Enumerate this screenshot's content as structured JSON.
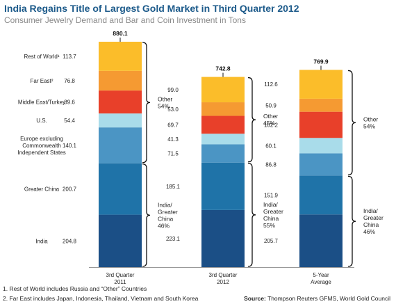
{
  "title": "India Regains Title of Largest Gold Market in Third Quarter 2012",
  "subtitle": "Consumer Jewelry Demand and Bar and Coin Investment in Tons",
  "chart_data": {
    "type": "bar",
    "stacked": true,
    "categories": [
      "3rd Quarter 2011",
      "3rd Quarter 2012",
      "5-Year Average"
    ],
    "category_label_lines": [
      [
        "3rd Quarter",
        "2011"
      ],
      [
        "3rd Quarter",
        "2012"
      ],
      [
        "5-Year",
        "Average"
      ]
    ],
    "totals": [
      "880.1",
      "742.8",
      "769.9"
    ],
    "series": [
      {
        "name": "India",
        "label_lines": [
          "India"
        ],
        "color": "#1b4f86",
        "values": [
          204.8,
          223.1,
          205.7
        ]
      },
      {
        "name": "Greater China",
        "label_lines": [
          "Greater China"
        ],
        "color": "#1f73a8",
        "values": [
          200.7,
          185.1,
          151.9
        ]
      },
      {
        "name": "Europe excluding Commonwealth Independent States",
        "label_lines": [
          "Europe excluding",
          "Commonwealth",
          "Independent States"
        ],
        "color": "#4b95c4",
        "values": [
          140.1,
          71.5,
          86.8
        ]
      },
      {
        "name": "U.S.",
        "label_lines": [
          "U.S."
        ],
        "color": "#a9dcea",
        "values": [
          54.4,
          41.3,
          60.1
        ]
      },
      {
        "name": "Middle East/Turkey",
        "label_lines": [
          "Middle East/Turkey"
        ],
        "color": "#e8402a",
        "values": [
          89.6,
          69.7,
          102.2
        ]
      },
      {
        "name": "Far East²",
        "label_lines": [
          "Far East²"
        ],
        "color": "#f59a32",
        "values": [
          76.8,
          53.0,
          50.9
        ]
      },
      {
        "name": "Rest of World¹",
        "label_lines": [
          "Rest of World¹"
        ],
        "color": "#fbbd2a",
        "values": [
          113.7,
          99.0,
          112.6
        ]
      }
    ],
    "value_labels": [
      [
        "204.8",
        "200.7",
        "140.1",
        "54.4",
        "89.6",
        "76.8",
        "113.7"
      ],
      [
        "223.1",
        "185.1",
        "71.5",
        "41.3",
        "69.7",
        "53.0",
        "99.0"
      ],
      [
        "205.7",
        "151.9",
        "86.8",
        "60.1",
        "102.2",
        "50.9",
        "112.6"
      ]
    ],
    "brackets": [
      {
        "lines": [
          "Other",
          "54%"
        ]
      },
      {
        "lines": [
          "India/",
          "Greater",
          "China",
          "46%"
        ]
      },
      {
        "lines": [
          "Other",
          "45%"
        ]
      },
      {
        "lines": [
          "India/",
          "Greater",
          "China",
          "55%"
        ]
      },
      {
        "lines": [
          "Other",
          "54%"
        ]
      },
      {
        "lines": [
          "India/",
          "Greater",
          "China",
          "46%"
        ]
      }
    ],
    "grid": false,
    "legend": "left"
  },
  "footnotes": [
    "1. Rest of World includes Russia and “Other” Countries",
    "2. Far East includes Japan, Indonesia, Thailand, Vietnam and South Korea"
  ],
  "source": {
    "label": "Source:",
    "text": " Thompson Reuters GFMS, World Gold Council"
  }
}
